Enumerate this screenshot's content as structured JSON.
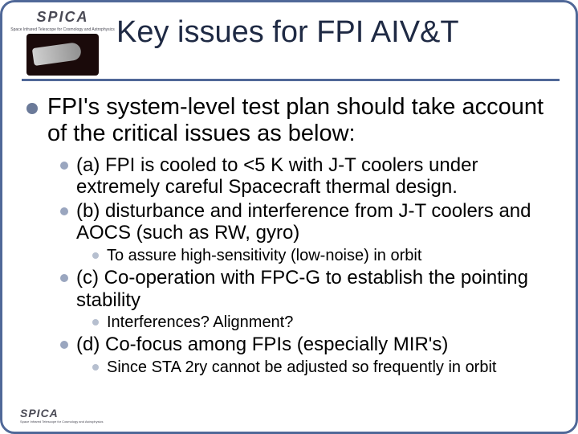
{
  "colors": {
    "slide_border": "#506898",
    "title_color": "#1f2a44",
    "hr_color": "#506898",
    "bullet_l1": "#6b7a99",
    "bullet_l2": "#9aa6bf",
    "bullet_l3": "#b6bfcf",
    "text_color": "#000000",
    "logo_bg": "#1a0a0a",
    "spica_color": "#4a4a55"
  },
  "fonts": {
    "title_size": 38,
    "l1_size": 29,
    "l2_size": 24,
    "l3_size": 20
  },
  "logo": {
    "name": "SPICA",
    "subtitle": "Space Infrared Telescope for Cosmology and Astrophysics"
  },
  "title": "Key issues for FPI AIV&T",
  "l1": {
    "text": "FPI's system-level test plan should take account of the critical issues as below:"
  },
  "l2": [
    {
      "text": "(a) FPI is cooled to <5 K with J-T coolers under extremely careful Spacecraft thermal design.",
      "sub": []
    },
    {
      "text": "(b) disturbance and interference from J-T coolers and AOCS (such as RW, gyro)",
      "sub": [
        {
          "text": "To assure high-sensitivity (low-noise) in orbit"
        }
      ]
    },
    {
      "text": "(c) Co-operation with FPC-G to establish the pointing stability",
      "sub": [
        {
          "text": "Interferences? Alignment?"
        }
      ]
    },
    {
      "text": "(d) Co-focus among FPIs (especially MIR's)",
      "sub": [
        {
          "text": "Since STA 2ry cannot be adjusted so frequently in orbit"
        }
      ]
    }
  ]
}
